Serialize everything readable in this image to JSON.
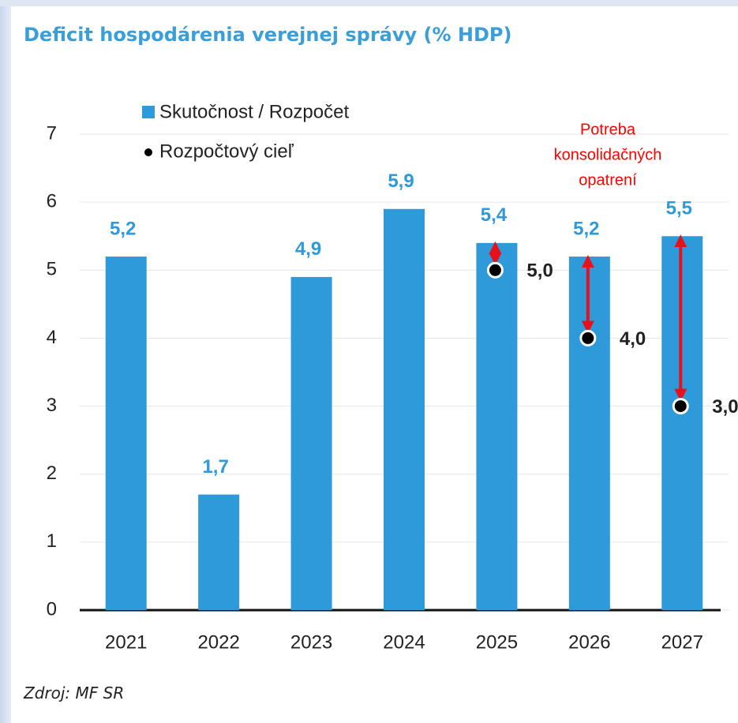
{
  "chart_data": {
    "type": "bar",
    "title": "Deficit hospodárenia verejnej správy (% HDP)",
    "categories": [
      "2021",
      "2022",
      "2023",
      "2024",
      "2025",
      "2026",
      "2027"
    ],
    "series": [
      {
        "name": "Skutočnost / Rozpočet",
        "color": "#2e9ad9",
        "values": [
          5.2,
          1.7,
          4.9,
          5.9,
          5.4,
          5.2,
          5.5
        ],
        "value_labels": [
          "5,2",
          "1,7",
          "4,9",
          "5,9",
          "5,4",
          "5,2",
          "5,5"
        ]
      },
      {
        "name": "Rozpočtový cieľ",
        "color": "#000000",
        "values": [
          null,
          null,
          null,
          null,
          5.0,
          4.0,
          3.0
        ],
        "value_labels": [
          null,
          null,
          null,
          null,
          "5,0",
          "4,0",
          "3,0"
        ]
      }
    ],
    "annotation": [
      "Potreba",
      "konsolidačných",
      "opatrení"
    ],
    "annotation_color": "#ff0000",
    "ylim": [
      0,
      7
    ],
    "yticks": [
      0,
      1,
      2,
      3,
      4,
      5,
      6,
      7
    ],
    "grid": true,
    "legend": "top-left",
    "source": "Zdroj: MF SR"
  }
}
